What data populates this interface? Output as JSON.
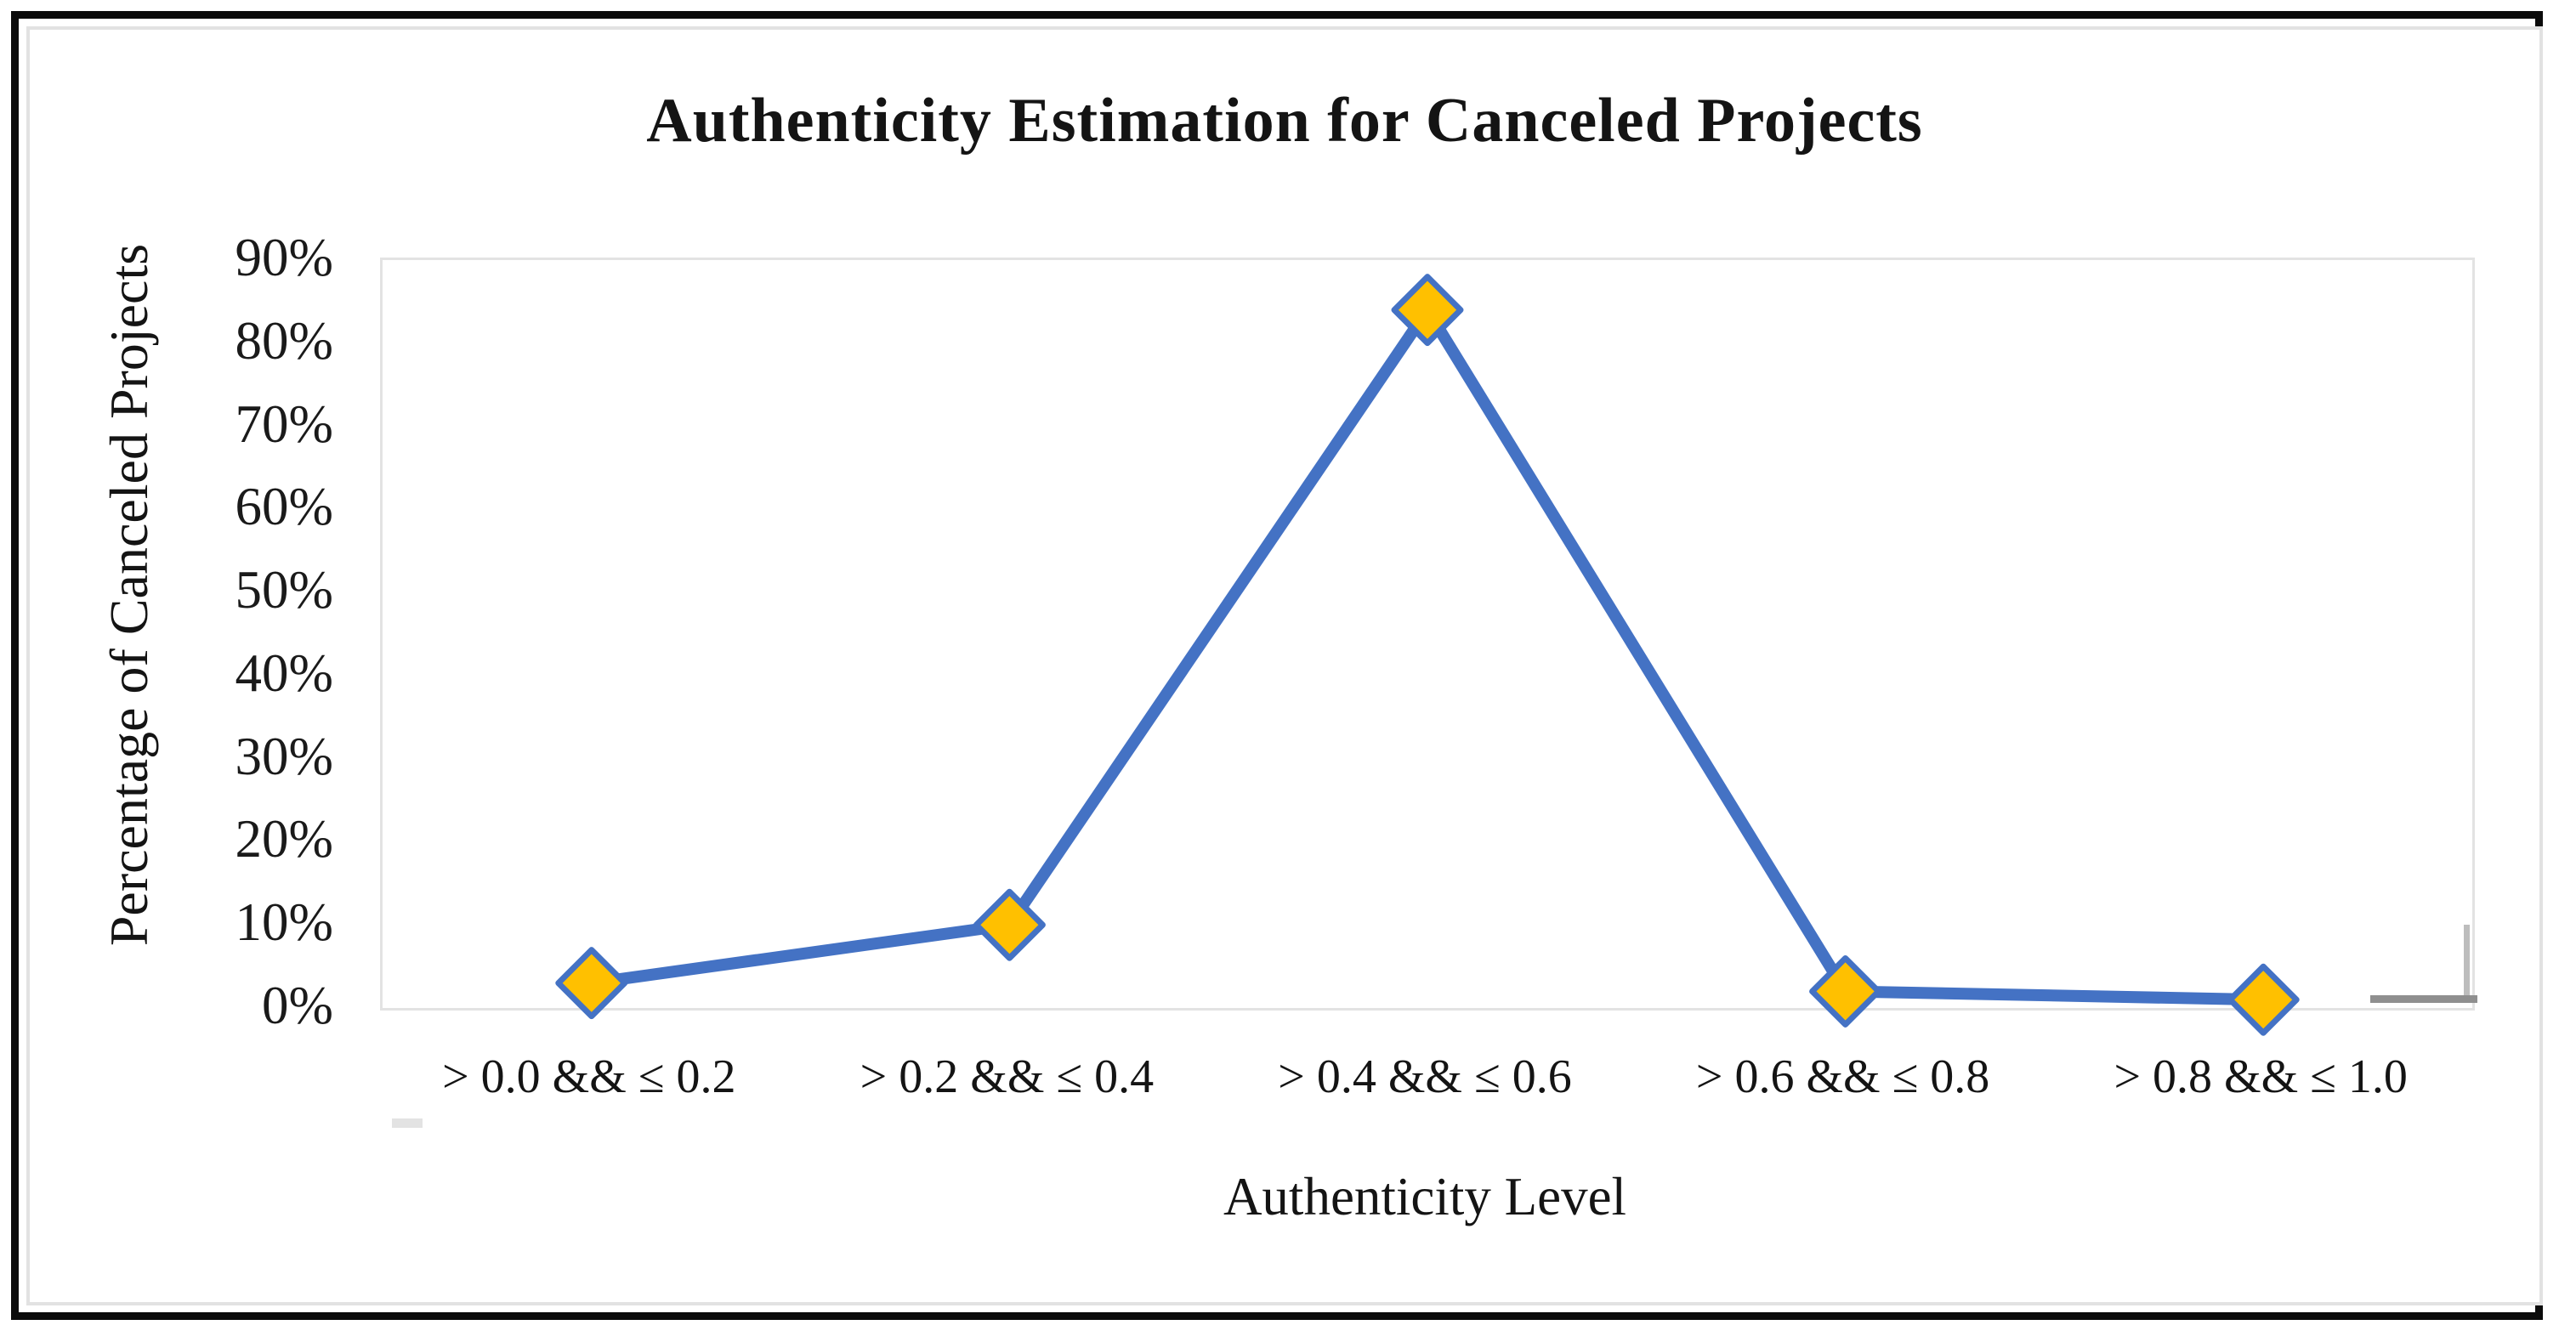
{
  "figure": {
    "title": "Authenticity Estimation for Canceled Projects",
    "y_axis": {
      "label": "Percentage of Canceled Projects",
      "tick_labels": [
        "90%",
        "80%",
        "70%",
        "60%",
        "50%",
        "40%",
        "30%",
        "20%",
        "10%",
        "0%"
      ]
    },
    "x_axis": {
      "label": "Authenticity Level",
      "categories": [
        "> 0.0 && ≤ 0.2",
        "> 0.2 && ≤ 0.4",
        "> 0.4 && ≤ 0.6",
        "> 0.6 && ≤ 0.8",
        "> 0.8 && ≤ 1.0"
      ]
    }
  },
  "chart_data": {
    "type": "line",
    "title": "Authenticity Estimation for Canceled Projects",
    "xlabel": "Authenticity Level",
    "ylabel": "Percentage of Canceled Projects",
    "categories": [
      "> 0.0 && ≤ 0.2",
      "> 0.2 && ≤ 0.4",
      "> 0.4 && ≤ 0.6",
      "> 0.6 && ≤ 0.8",
      "> 0.8 && ≤ 1.0"
    ],
    "values": [
      3,
      10,
      84,
      2,
      1
    ],
    "unit": "%",
    "ylim": [
      0,
      90
    ],
    "y_tick_step": 10,
    "grid": false,
    "legend": false,
    "line_color": "#4472C4",
    "marker": "diamond",
    "marker_fill": "#FFC000",
    "marker_border": "#4472C4"
  }
}
